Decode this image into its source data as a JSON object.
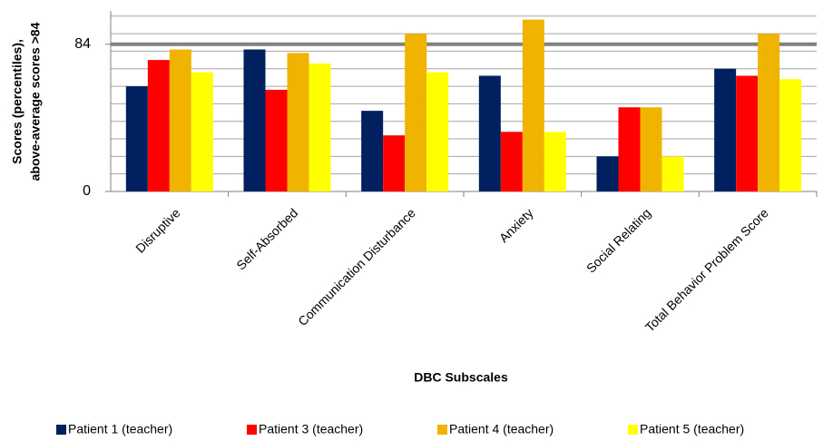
{
  "chart_data": {
    "type": "bar",
    "y_label": [
      "Scores (percentiles),",
      "above-average scores >84"
    ],
    "x_label": "DBC Subscales",
    "categories": [
      "Disruptive",
      "Self-Absorbed",
      "Communication Disturbance",
      "Anxiety",
      "Social Relating",
      "Total Behavior Problem Score"
    ],
    "series": [
      {
        "name": "Patient 1 (teacher)",
        "color": "#002060",
        "values": [
          60,
          81,
          46,
          66,
          20,
          70
        ]
      },
      {
        "name": "Patient 3 (teacher)",
        "color": "#ff0000",
        "values": [
          75,
          58,
          32,
          34,
          48,
          66
        ]
      },
      {
        "name": "Patient 4 (teacher)",
        "color": "#f0b400",
        "values": [
          81,
          79,
          90,
          98,
          48,
          90
        ]
      },
      {
        "name": "Patient 5 (teacher)",
        "color": "#ffff00",
        "values": [
          68,
          73,
          68,
          34,
          20,
          64
        ]
      }
    ],
    "ylim": [
      0,
      103
    ],
    "yticks": [
      0,
      84
    ],
    "grid_lines": [
      10,
      20,
      30,
      40,
      50,
      60,
      70,
      80,
      90,
      100
    ],
    "reference_line": 84,
    "legend": "bottom"
  }
}
